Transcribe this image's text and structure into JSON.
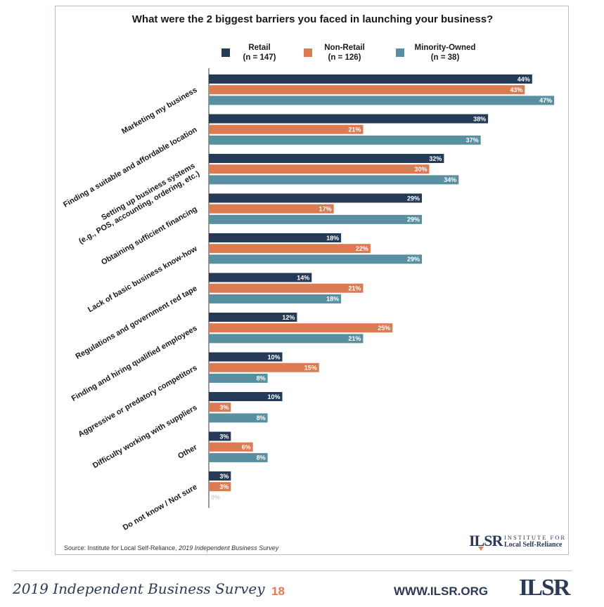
{
  "chart_data": {
    "type": "bar",
    "orientation": "horizontal",
    "title": "What were the 2 biggest barriers you faced in launching your business?",
    "categories": [
      "Marketing my business",
      "Finding a suitable and affordable location",
      "Setting up business systems\n(e.g., POS, accounting, ordering, etc.)",
      "Obtaining sufficient financing",
      "Lack of basic business know-how",
      "Regulations and government red tape",
      "Finding and hiring qualified employees",
      "Aggressive or predatory competitors",
      "Difficulty working with suppliers",
      "Other",
      "Do not know / Not sure"
    ],
    "series": [
      {
        "name": "Retail",
        "sample": "(n = 147)",
        "color": "#243a56",
        "values": [
          44,
          38,
          32,
          29,
          18,
          14,
          12,
          10,
          10,
          3,
          3
        ]
      },
      {
        "name": "Non-Retail",
        "sample": "(n = 126)",
        "color": "#dc7b52",
        "values": [
          43,
          21,
          30,
          17,
          22,
          21,
          25,
          15,
          3,
          6,
          3
        ]
      },
      {
        "name": "Minority-Owned",
        "sample": "(n = 38)",
        "color": "#5890a2",
        "values": [
          47,
          37,
          34,
          29,
          29,
          18,
          21,
          8,
          8,
          8,
          0
        ]
      }
    ],
    "value_suffix": "%",
    "legend_position": "top",
    "grid": false
  },
  "source": {
    "prefix": "Source: Institute for Local Self-Reliance, ",
    "italic": "2019 Independent Business Survey"
  },
  "inner_logo": {
    "mark": "ILSR",
    "line1": "INSTITUTE FOR",
    "line2": "Local Self-Reliance"
  },
  "footer": {
    "survey": "2019 Independent Business Survey",
    "page": "18",
    "url": "WWW.ILSR.ORG",
    "logo": "ILSR"
  }
}
